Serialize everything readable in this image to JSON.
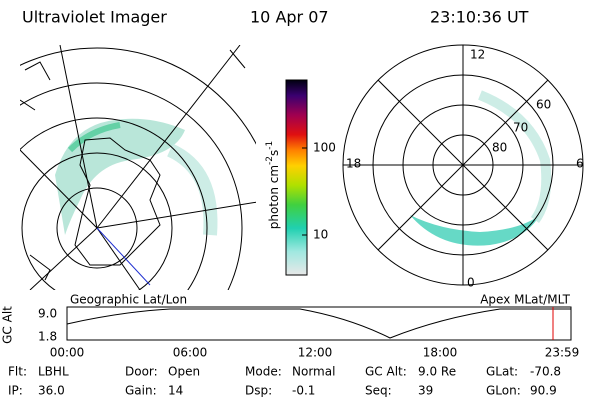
{
  "header": {
    "title": "Ultraviolet Imager",
    "date": "10 Apr 07",
    "time": "23:10:36 UT"
  },
  "left_panel": {
    "label": "Geographic Lat/Lon"
  },
  "right_panel": {
    "label": "Apex MLat/MLT",
    "mlt_labels": [
      "12",
      "18",
      "6",
      "0"
    ],
    "mlat_labels": [
      "60",
      "70",
      "80"
    ]
  },
  "colorbar": {
    "unit": {
      "base": "photon cm",
      "exp1": "-2",
      "mid": "s",
      "exp2": "-1"
    },
    "ticks": [
      "100",
      "10"
    ]
  },
  "altitude_plot": {
    "axis_label": "GC Alt",
    "y_ticks": [
      "9.0",
      "1.8"
    ],
    "x_ticks": [
      "00:00",
      "06:00",
      "12:00",
      "18:00",
      "23:59"
    ]
  },
  "status": [
    [
      [
        "Flt:",
        "LBHL"
      ],
      [
        "Door:",
        "Open"
      ],
      [
        "Mode:",
        "Normal"
      ],
      [
        "GC Alt:",
        "9.0 Re"
      ],
      [
        "GLat:",
        "-70.8"
      ]
    ],
    [
      [
        "IP:",
        "36.0"
      ],
      [
        "Gain:",
        "14"
      ],
      [
        "Dsp:",
        "-0.1"
      ],
      [
        "Seq:",
        "39"
      ],
      [
        "GLon:",
        "90.9"
      ]
    ]
  ]
}
